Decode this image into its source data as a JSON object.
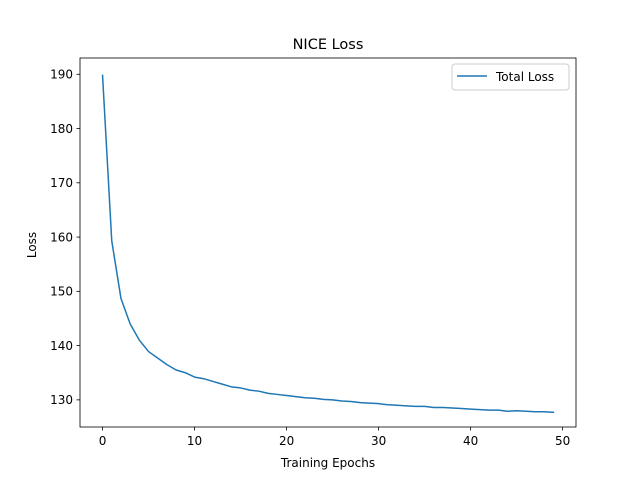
{
  "chart_data": {
    "type": "line",
    "title": "NICE Loss",
    "xlabel": "Training Epochs",
    "ylabel": "Loss",
    "xlim": [
      -2.45,
      51.45
    ],
    "ylim": [
      125.0,
      193.0
    ],
    "xticks": [
      0,
      10,
      20,
      30,
      40,
      50
    ],
    "yticks": [
      130,
      140,
      150,
      160,
      170,
      180,
      190
    ],
    "grid": false,
    "legend_position": "upper right",
    "series": [
      {
        "name": "Total Loss",
        "color": "#1f77b4",
        "x": [
          0,
          1,
          2,
          3,
          4,
          5,
          6,
          7,
          8,
          9,
          10,
          11,
          12,
          13,
          14,
          15,
          16,
          17,
          18,
          19,
          20,
          21,
          22,
          23,
          24,
          25,
          26,
          27,
          28,
          29,
          30,
          31,
          32,
          33,
          34,
          35,
          36,
          37,
          38,
          39,
          40,
          41,
          42,
          43,
          44,
          45,
          46,
          47,
          48,
          49
        ],
        "y": [
          189.8,
          159.3,
          148.7,
          144.0,
          141.0,
          138.9,
          137.7,
          136.5,
          135.5,
          135.0,
          134.2,
          133.9,
          133.4,
          132.9,
          132.4,
          132.2,
          131.8,
          131.6,
          131.2,
          131.0,
          130.8,
          130.6,
          130.4,
          130.3,
          130.1,
          130.0,
          129.8,
          129.7,
          129.5,
          129.4,
          129.3,
          129.1,
          129.0,
          128.9,
          128.8,
          128.8,
          128.6,
          128.6,
          128.5,
          128.4,
          128.3,
          128.2,
          128.1,
          128.1,
          127.9,
          128.0,
          127.9,
          127.8,
          127.8,
          127.7
        ]
      }
    ]
  }
}
